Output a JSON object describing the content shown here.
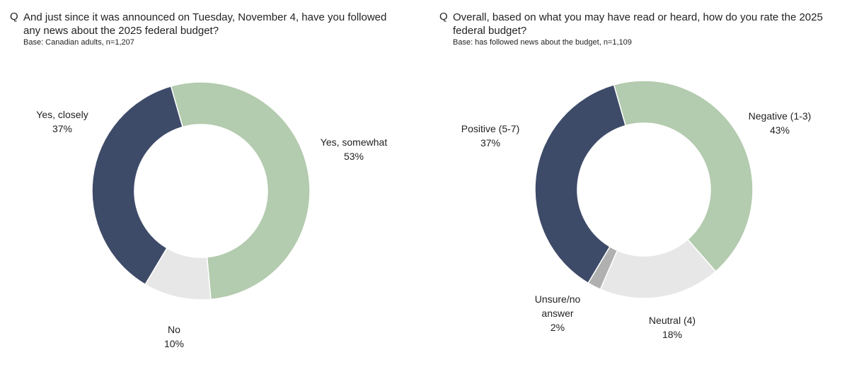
{
  "chart_data": [
    {
      "type": "pie",
      "donut": true,
      "prefix": "Q",
      "title": "And just since it was announced on Tuesday, November 4, have you followed any news about the 2025 federal budget?",
      "subtitle": "Base: Canadian adults,  n=1,207",
      "categories": [
        "Yes, somewhat",
        "No",
        "Yes, closely"
      ],
      "values": [
        53,
        10,
        37
      ],
      "value_labels": [
        "53%",
        "10%",
        "37%"
      ],
      "colors": [
        "#b3cbae",
        "#e7e7e7",
        "#3d4b68"
      ]
    },
    {
      "type": "pie",
      "donut": true,
      "prefix": "Q",
      "title": "Overall, based on what you may have read or heard, how do you rate the 2025 federal budget?",
      "subtitle": "Base: has followed news about the budget,  n=1,109",
      "categories": [
        "Negative (1-3)",
        "Neutral (4)",
        "Unsure/no answer",
        "Positive (5-7)"
      ],
      "values": [
        43,
        18,
        2,
        37
      ],
      "value_labels": [
        "43%",
        "18%",
        "2%",
        "37%"
      ],
      "colors": [
        "#b3cbae",
        "#e7e7e7",
        "#b0b0b0",
        "#3d4b68"
      ]
    }
  ]
}
